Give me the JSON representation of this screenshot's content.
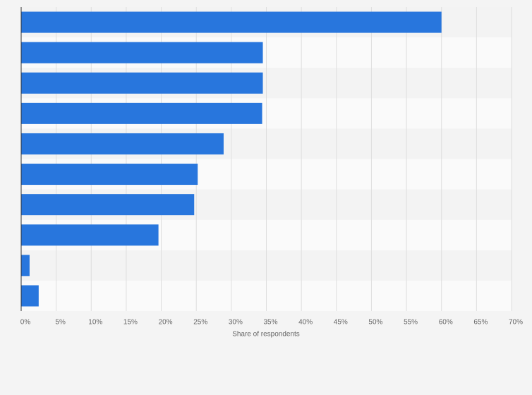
{
  "chart_data": {
    "type": "hbar",
    "categories": [
      null,
      null,
      null,
      null,
      null,
      null,
      null,
      null,
      null,
      null
    ],
    "values": [
      60,
      34.5,
      34.5,
      34.4,
      28.9,
      25.2,
      24.7,
      19.6,
      1.2,
      2.5
    ],
    "color": "#2876dd",
    "xlabel": "Share of respondents",
    "xlim": [
      0,
      70
    ],
    "xticks": [
      {
        "value": 0,
        "label": "0%"
      },
      {
        "value": 5,
        "label": "5%"
      },
      {
        "value": 10,
        "label": "10%"
      },
      {
        "value": 15,
        "label": "15%"
      },
      {
        "value": 20,
        "label": "20%"
      },
      {
        "value": 25,
        "label": "25%"
      },
      {
        "value": 30,
        "label": "30%"
      },
      {
        "value": 35,
        "label": "35%"
      },
      {
        "value": 40,
        "label": "40%"
      },
      {
        "value": 45,
        "label": "45%"
      },
      {
        "value": 50,
        "label": "50%"
      },
      {
        "value": 55,
        "label": "55%"
      },
      {
        "value": 60,
        "label": "60%"
      },
      {
        "value": 65,
        "label": "65%"
      },
      {
        "value": 70,
        "label": "70%"
      }
    ],
    "grid": true
  }
}
